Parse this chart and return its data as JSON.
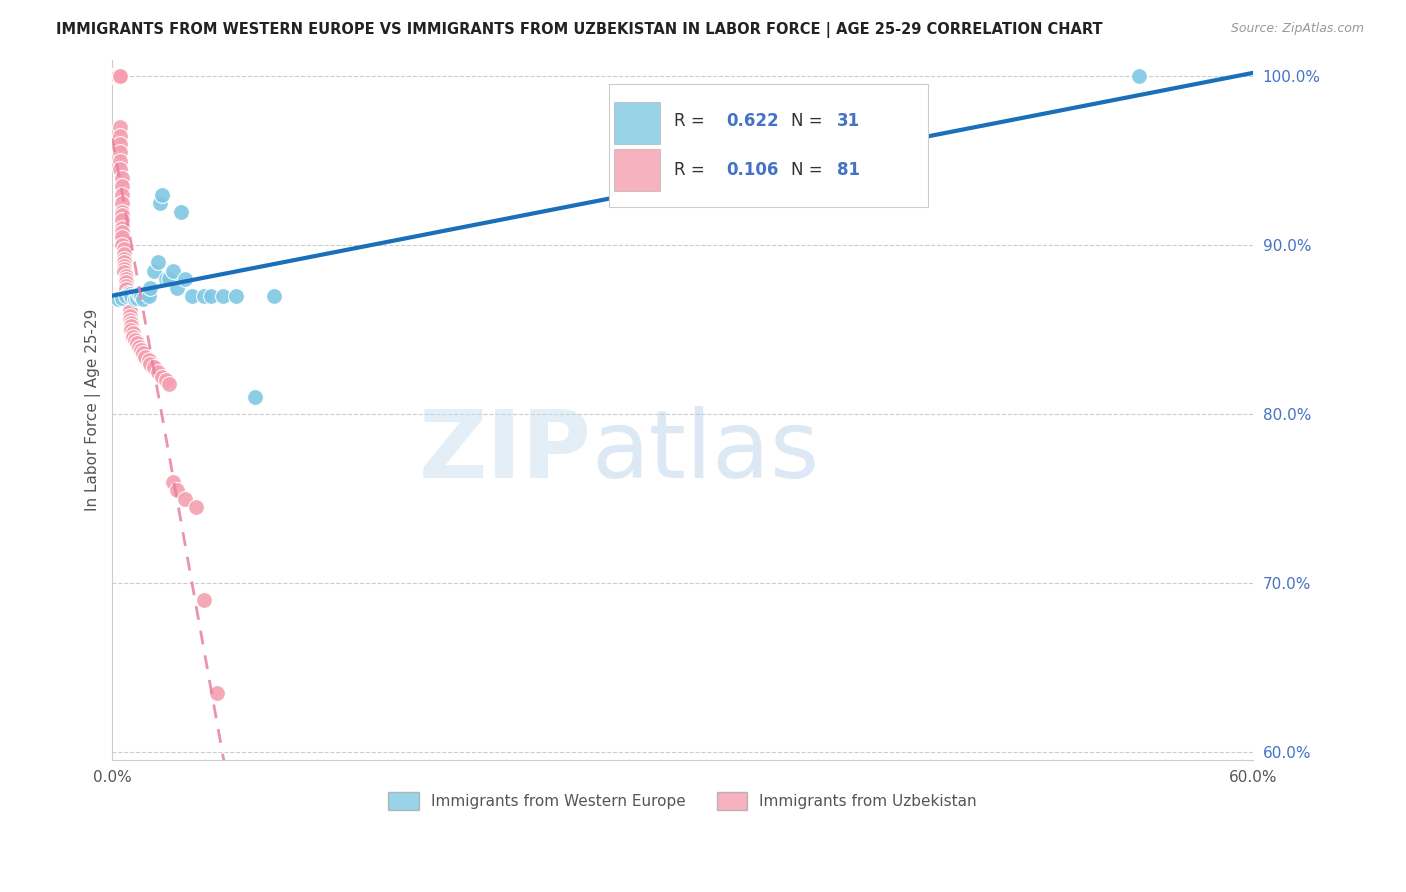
{
  "title": "IMMIGRANTS FROM WESTERN EUROPE VS IMMIGRANTS FROM UZBEKISTAN IN LABOR FORCE | AGE 25-29 CORRELATION CHART",
  "source": "Source: ZipAtlas.com",
  "ylabel": "In Labor Force | Age 25-29",
  "xlim": [
    0.0,
    0.6
  ],
  "ylim": [
    0.595,
    1.01
  ],
  "xticks": [
    0.0,
    0.1,
    0.2,
    0.3,
    0.4,
    0.5,
    0.6
  ],
  "xticklabels": [
    "0.0%",
    "",
    "",
    "",
    "",
    "",
    "60.0%"
  ],
  "yticks_right": [
    1.0,
    0.9,
    0.8,
    0.7,
    0.6
  ],
  "yticklabels_right": [
    "100.0%",
    "90.0%",
    "80.0%",
    "70.0%",
    "60.0%"
  ],
  "legend_blue_label": "Immigrants from Western Europe",
  "legend_pink_label": "Immigrants from Uzbekistan",
  "R_blue": 0.622,
  "N_blue": 31,
  "R_pink": 0.106,
  "N_pink": 81,
  "blue_color": "#7ec8e3",
  "pink_color": "#f4a0b0",
  "blue_line_color": "#1a6fba",
  "pink_line_color": "#e87fa0",
  "watermark_zip": "ZIP",
  "watermark_atlas": "atlas",
  "blue_scatter_x": [
    0.003,
    0.005,
    0.007,
    0.009,
    0.01,
    0.012,
    0.013,
    0.014,
    0.015,
    0.016,
    0.018,
    0.019,
    0.02,
    0.022,
    0.024,
    0.025,
    0.026,
    0.028,
    0.03,
    0.032,
    0.034,
    0.036,
    0.038,
    0.042,
    0.048,
    0.052,
    0.058,
    0.065,
    0.075,
    0.085,
    0.54
  ],
  "blue_scatter_y": [
    0.868,
    0.869,
    0.87,
    0.871,
    0.87,
    0.868,
    0.869,
    0.871,
    0.87,
    0.868,
    0.871,
    0.87,
    0.875,
    0.885,
    0.89,
    0.925,
    0.93,
    0.88,
    0.88,
    0.885,
    0.875,
    0.92,
    0.88,
    0.87,
    0.87,
    0.87,
    0.87,
    0.87,
    0.81,
    0.87,
    1.0
  ],
  "pink_scatter_x": [
    0.001,
    0.001,
    0.001,
    0.002,
    0.002,
    0.002,
    0.002,
    0.002,
    0.002,
    0.003,
    0.003,
    0.003,
    0.003,
    0.003,
    0.003,
    0.003,
    0.003,
    0.004,
    0.004,
    0.004,
    0.004,
    0.004,
    0.004,
    0.004,
    0.004,
    0.004,
    0.005,
    0.005,
    0.005,
    0.005,
    0.005,
    0.005,
    0.005,
    0.005,
    0.005,
    0.005,
    0.005,
    0.006,
    0.006,
    0.006,
    0.006,
    0.006,
    0.006,
    0.006,
    0.007,
    0.007,
    0.007,
    0.007,
    0.007,
    0.008,
    0.008,
    0.008,
    0.008,
    0.009,
    0.009,
    0.009,
    0.009,
    0.01,
    0.01,
    0.01,
    0.011,
    0.011,
    0.012,
    0.013,
    0.014,
    0.015,
    0.016,
    0.017,
    0.019,
    0.02,
    0.022,
    0.024,
    0.026,
    0.028,
    0.03,
    0.032,
    0.034,
    0.038,
    0.044,
    0.048,
    0.055
  ],
  "pink_scatter_y": [
    1.0,
    1.0,
    1.0,
    1.0,
    1.0,
    1.0,
    1.0,
    1.0,
    1.0,
    1.0,
    1.0,
    1.0,
    1.0,
    1.0,
    1.0,
    1.0,
    1.0,
    1.0,
    1.0,
    1.0,
    0.97,
    0.965,
    0.96,
    0.955,
    0.95,
    0.945,
    0.94,
    0.935,
    0.93,
    0.925,
    0.92,
    0.918,
    0.915,
    0.91,
    0.908,
    0.905,
    0.9,
    0.898,
    0.895,
    0.892,
    0.89,
    0.888,
    0.886,
    0.884,
    0.882,
    0.88,
    0.878,
    0.876,
    0.874,
    0.872,
    0.87,
    0.868,
    0.865,
    0.863,
    0.861,
    0.858,
    0.856,
    0.854,
    0.852,
    0.85,
    0.848,
    0.846,
    0.844,
    0.842,
    0.84,
    0.838,
    0.836,
    0.834,
    0.832,
    0.83,
    0.828,
    0.825,
    0.822,
    0.82,
    0.818,
    0.76,
    0.755,
    0.75,
    0.745,
    0.69,
    0.635
  ]
}
